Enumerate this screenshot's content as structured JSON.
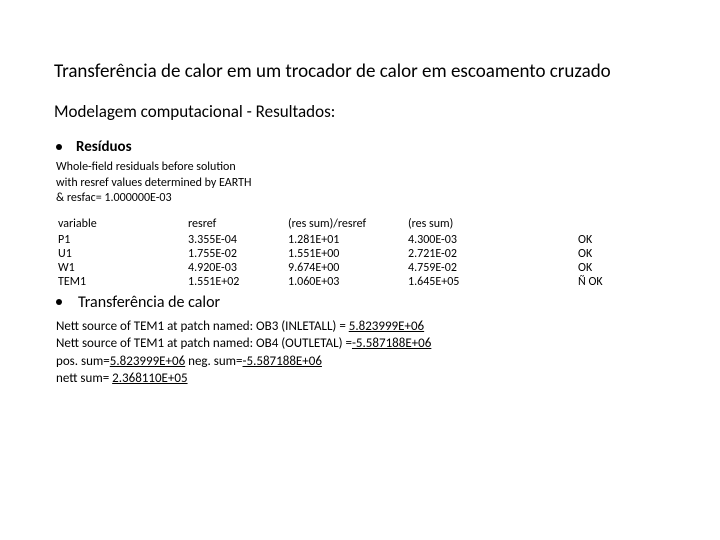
{
  "title": "Transferência de calor em um trocador de calor em escoamento cruzado",
  "subtitle": "Modelagem computacional - Resultados:",
  "bullets": {
    "residuos": "Resíduos",
    "transfer": "Transferência de calor"
  },
  "desc": {
    "l1": "Whole-field residuals before solution",
    "l2": "with resref values determined by EARTH",
    "l3": "& resfac= 1.000000E-03"
  },
  "table": {
    "headers": {
      "c1": "variable",
      "c2": "resref",
      "c3": "(res sum)/resref",
      "c4": "(res sum)"
    },
    "rows": [
      {
        "c1": "P1",
        "c2": "3.355E-04",
        "c3": "1.281E+01",
        "c4": "4.300E-03",
        "c5": "OK"
      },
      {
        "c1": "U1",
        "c2": "1.755E-02",
        "c3": "1.551E+00",
        "c4": "2.721E-02",
        "c5": "OK"
      },
      {
        "c1": "W1",
        "c2": "4.920E-03",
        "c3": "9.674E+00",
        "c4": "4.759E-02",
        "c5": "OK"
      },
      {
        "c1": "TEM1",
        "c2": "1.551E+02",
        "c3": "1.060E+03",
        "c4": "1.645E+05",
        "c5": "Ñ OK"
      }
    ]
  },
  "sources": {
    "l1a": "Nett source of TEM1 at patch named: OB3      (INLETALL) = ",
    "l1b": "5.823999E+06",
    "l2a": "Nett source of TEM1 at patch named: OB4       (OUTLETAL) =",
    "l2b": "-5.587188E+06",
    "l3a": "pos. sum=",
    "l3b": "5.823999E+06",
    "l3c": " neg. sum=",
    "l3d": "-5.587188E+06",
    "l4a": "nett sum= ",
    "l4b": "2.368110E+05"
  }
}
